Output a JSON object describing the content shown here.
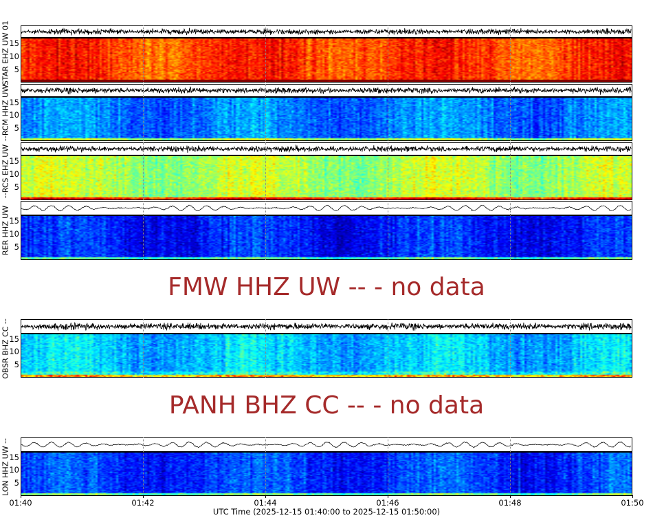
{
  "chart_data": {
    "type": "heatmap",
    "colormap": "jet",
    "xlabel": "UTC Time (2025-12-15 01:40:00 to 2025-12-15 01:50:00)",
    "x_ticks": [
      "01:40",
      "01:42",
      "01:44",
      "01:46",
      "01:48",
      "01:50"
    ],
    "y_ticks": [
      "5",
      "10",
      "15"
    ],
    "ylim": [
      0,
      17
    ],
    "panels": [
      {
        "label": "-STAR EHZ UW 01",
        "has_data": true,
        "mean_level": 0.82
      },
      {
        "label": "--RCM HHZ UW",
        "has_data": true,
        "mean_level": 0.25
      },
      {
        "label": "--RCS EHZ UW",
        "has_data": true,
        "mean_level": 0.55
      },
      {
        "label": "RER HHZ UW",
        "has_data": true,
        "mean_level": 0.15
      },
      {
        "label": "FMW HHZ UW -- - no data",
        "has_data": false
      },
      {
        "label": "OBSR BHZ CC --",
        "has_data": true,
        "mean_level": 0.32
      },
      {
        "label": "PANH BHZ CC -- - no data",
        "has_data": false
      },
      {
        "label": "LON HHZ UW --",
        "has_data": true,
        "mean_level": 0.18
      }
    ]
  },
  "colors": {
    "no_data_text": "#a52a2a",
    "waveform": "#000000"
  }
}
